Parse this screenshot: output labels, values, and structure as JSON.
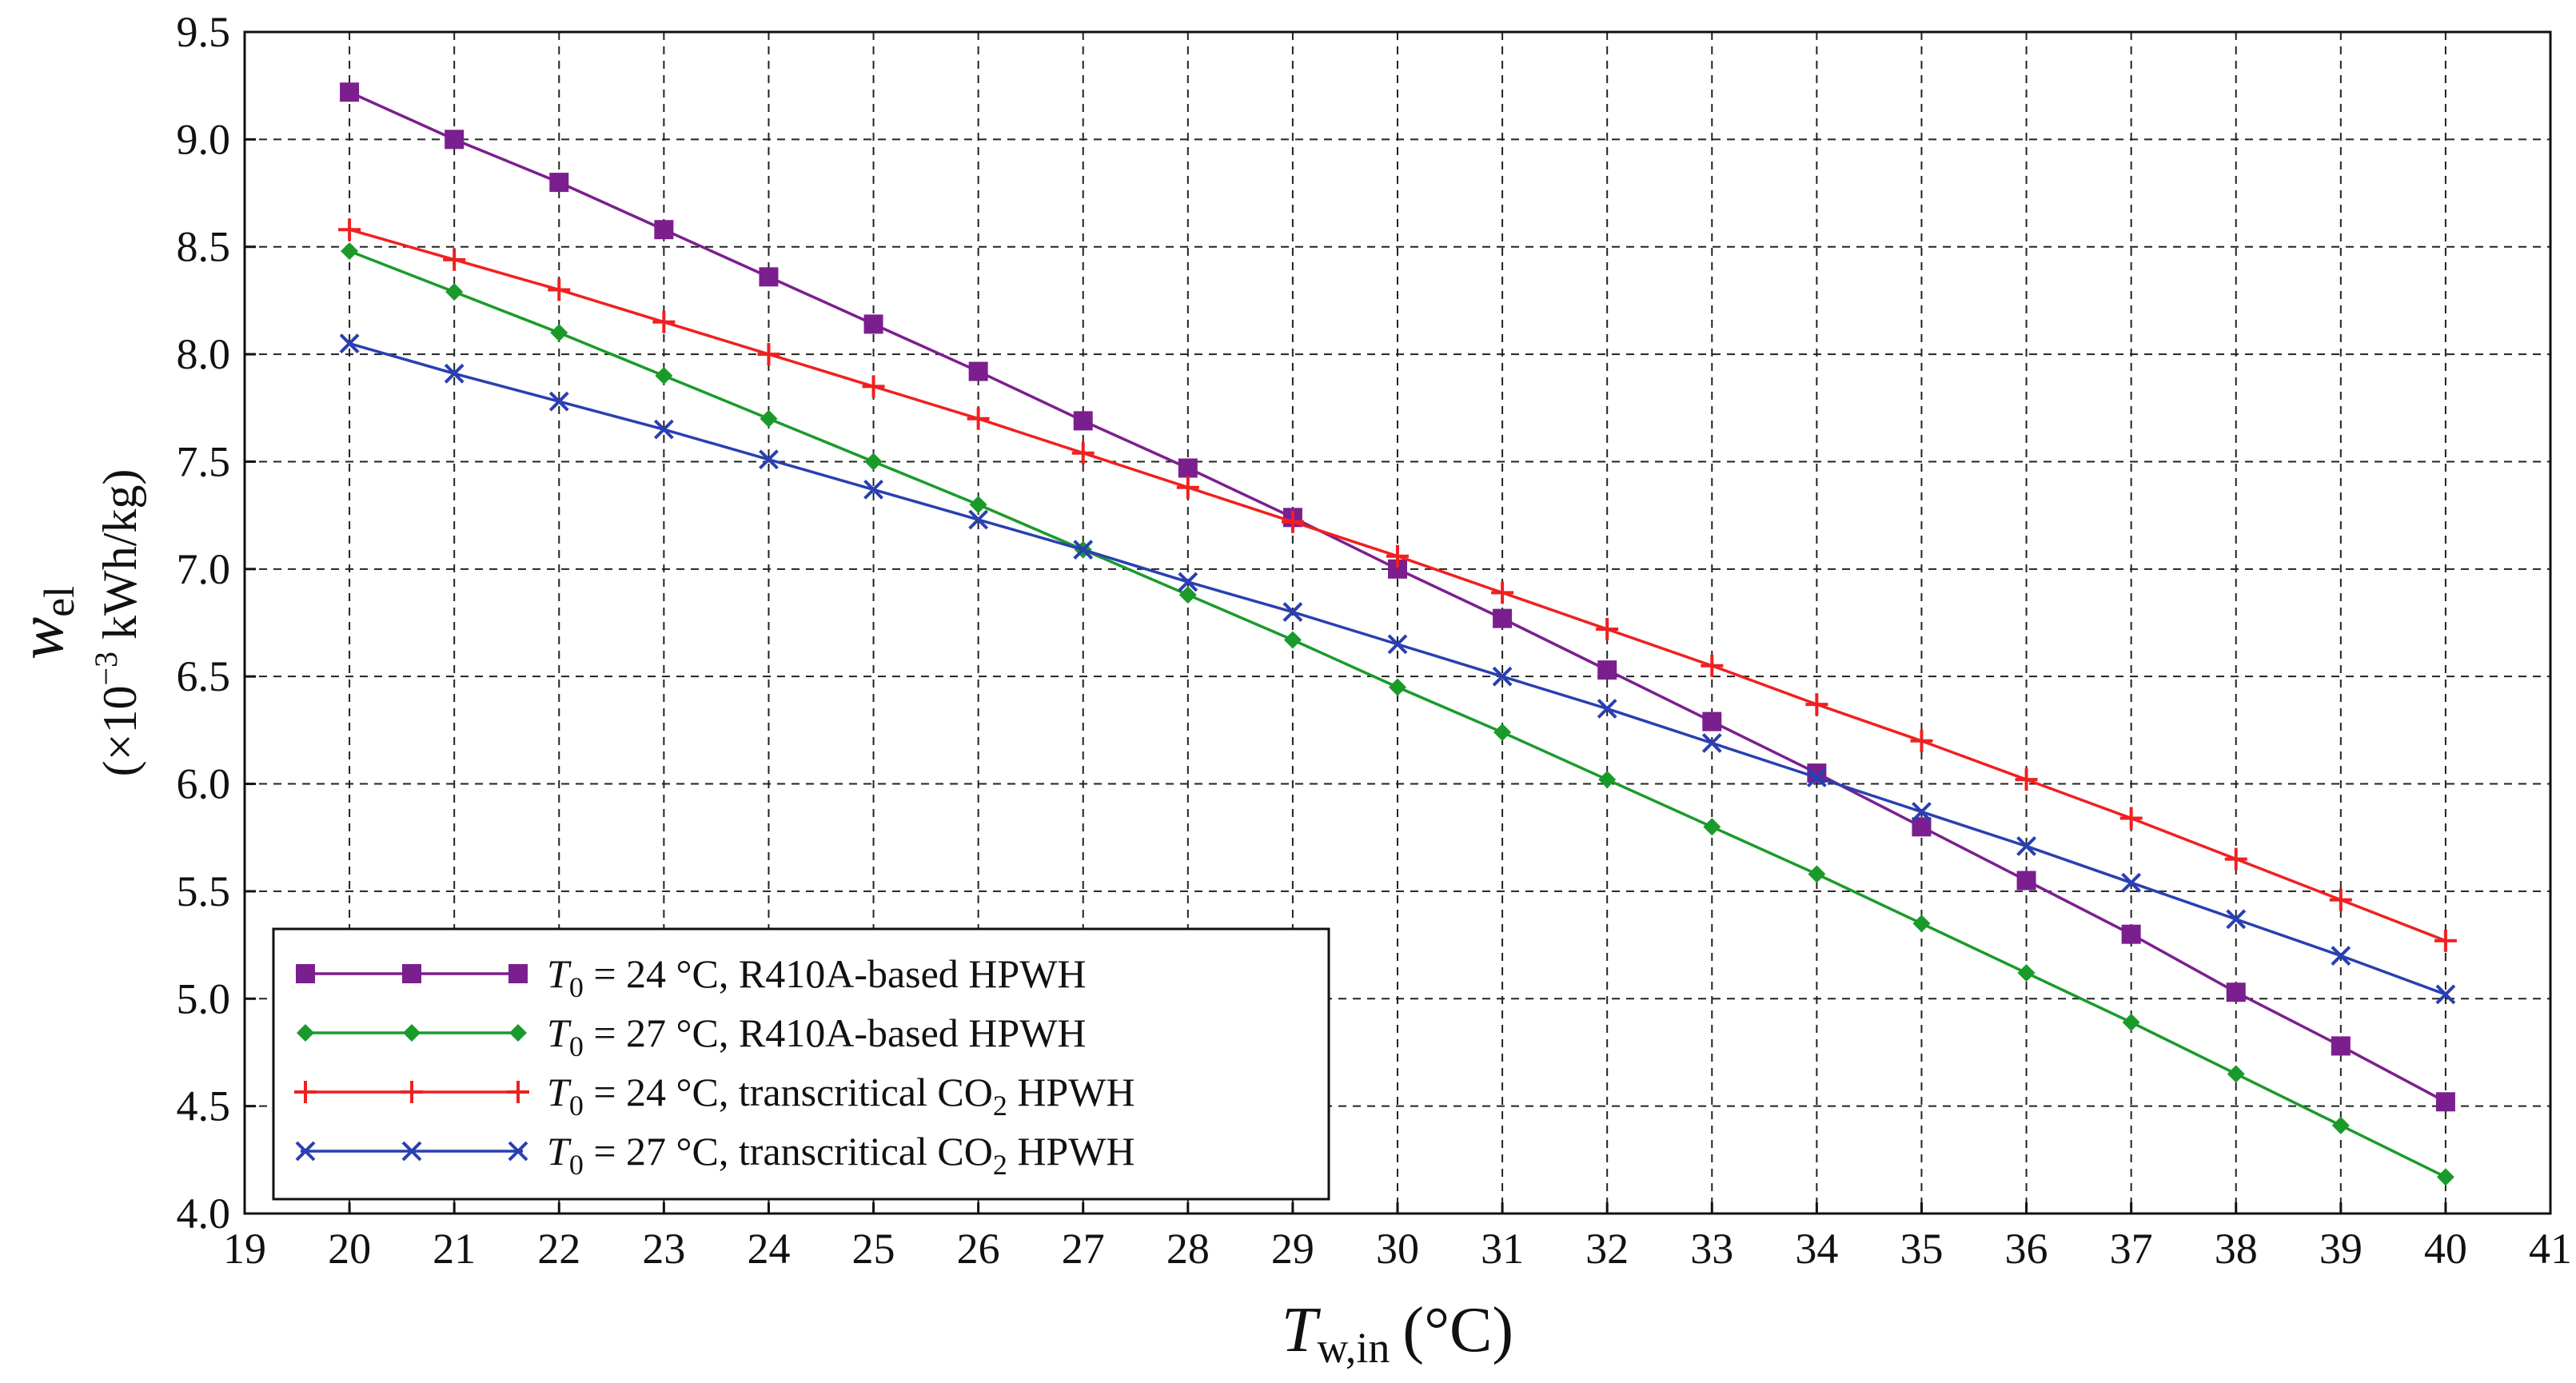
{
  "chart_data": {
    "type": "line",
    "title": "",
    "xlabel": {
      "main": "T",
      "sub": "w,in",
      "unit": "(°C)"
    },
    "ylabel": {
      "main": "w",
      "sub": "el",
      "unit_line": "(×10",
      "exp": "−3",
      "unit_rest": " kWh/kg)"
    },
    "xlim": [
      19,
      41
    ],
    "ylim": [
      4.0,
      9.5
    ],
    "xticks": [
      19,
      20,
      21,
      22,
      23,
      24,
      25,
      26,
      27,
      28,
      29,
      30,
      31,
      32,
      33,
      34,
      35,
      36,
      37,
      38,
      39,
      40,
      41
    ],
    "yticks": [
      4.0,
      4.5,
      5.0,
      5.5,
      6.0,
      6.5,
      7.0,
      7.5,
      8.0,
      8.5,
      9.0,
      9.5
    ],
    "grid": true,
    "legend_position": "bottom-left",
    "x": [
      20,
      21,
      22,
      23,
      24,
      25,
      26,
      27,
      28,
      29,
      30,
      31,
      32,
      33,
      34,
      35,
      36,
      37,
      38,
      39,
      40
    ],
    "series": [
      {
        "name": "T0 = 24 °C, R410A-based HPWH",
        "legend": {
          "t": "T",
          "sub": "0",
          "eq": " = 24 °C,  R410A-based HPWH"
        },
        "color": "#7b1f8e",
        "marker": "square",
        "values": [
          9.22,
          9.0,
          8.8,
          8.58,
          8.36,
          8.14,
          7.92,
          7.69,
          7.47,
          7.24,
          7.0,
          6.77,
          6.53,
          6.29,
          6.05,
          5.8,
          5.55,
          5.3,
          5.03,
          4.78,
          4.52
        ]
      },
      {
        "name": "T0 = 27 °C, R410A-based HPWH",
        "legend": {
          "t": "T",
          "sub": "0",
          "eq": " = 27 °C,  R410A-based HPWH"
        },
        "color": "#1a9a2a",
        "marker": "diamond",
        "values": [
          8.48,
          8.29,
          8.1,
          7.9,
          7.7,
          7.5,
          7.3,
          7.09,
          6.88,
          6.67,
          6.45,
          6.24,
          6.02,
          5.8,
          5.58,
          5.35,
          5.12,
          4.89,
          4.65,
          4.41,
          4.17
        ]
      },
      {
        "name": "T0 = 24 °C, transcritical CO2 HPWH",
        "legend": {
          "t": "T",
          "sub": "0",
          "eq": " = 24 °C,  transcritical CO",
          "sub2": "2",
          "tail": " HPWH"
        },
        "color": "#f02020",
        "marker": "plus",
        "values": [
          8.58,
          8.44,
          8.3,
          8.15,
          8.0,
          7.85,
          7.7,
          7.54,
          7.38,
          7.22,
          7.06,
          6.89,
          6.72,
          6.55,
          6.37,
          6.2,
          6.02,
          5.84,
          5.65,
          5.46,
          5.27
        ]
      },
      {
        "name": "T0 = 27 °C, transcritical CO2 HPWH",
        "legend": {
          "t": "T",
          "sub": "0",
          "eq": " = 27 °C,  transcritical CO",
          "sub2": "2",
          "tail": " HPWH"
        },
        "color": "#2a3fb0",
        "marker": "x",
        "values": [
          8.05,
          7.91,
          7.78,
          7.65,
          7.51,
          7.37,
          7.23,
          7.09,
          6.94,
          6.8,
          6.65,
          6.5,
          6.35,
          6.19,
          6.03,
          5.87,
          5.71,
          5.54,
          5.37,
          5.2,
          5.02
        ]
      }
    ]
  }
}
